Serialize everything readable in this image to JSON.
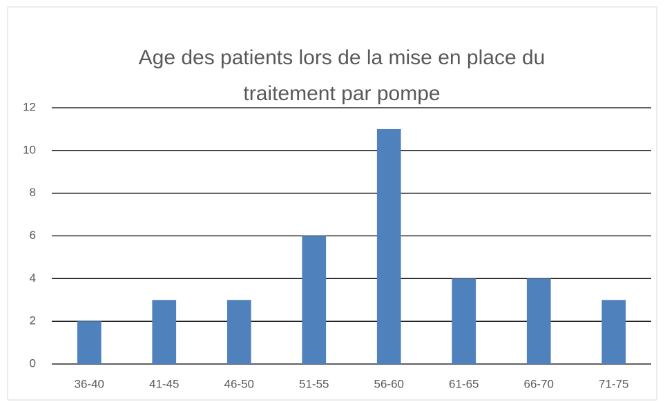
{
  "chart_data": {
    "type": "bar",
    "title": "Age des patients lors de la mise en place du traitement par pompe",
    "categories": [
      "36-40",
      "41-45",
      "46-50",
      "51-55",
      "56-60",
      "61-65",
      "66-70",
      "71-75"
    ],
    "values": [
      2,
      3,
      3,
      6,
      11,
      4,
      4,
      3
    ],
    "color": "#4f81bd",
    "ylim": [
      0,
      12
    ],
    "yticks": [
      0,
      2,
      4,
      6,
      8,
      10,
      12
    ],
    "grid": true
  }
}
